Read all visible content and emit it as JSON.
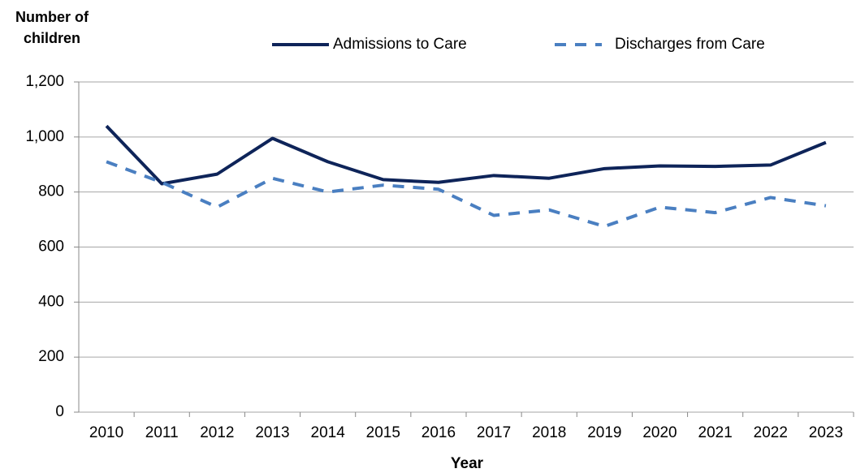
{
  "chart_data": {
    "type": "line",
    "y_label": "Number of children",
    "x_label": "Year",
    "categories": [
      "2010",
      "2011",
      "2012",
      "2013",
      "2014",
      "2015",
      "2016",
      "2017",
      "2018",
      "2019",
      "2020",
      "2021",
      "2022",
      "2023"
    ],
    "series": [
      {
        "name": "Admissions to Care",
        "color": "#0e2459",
        "dash": false,
        "values": [
          1040,
          830,
          865,
          995,
          910,
          845,
          835,
          860,
          850,
          885,
          895,
          893,
          898,
          980
        ]
      },
      {
        "name": "Discharges from Care",
        "color": "#4a7fc1",
        "dash": true,
        "values": [
          910,
          835,
          745,
          850,
          800,
          825,
          810,
          715,
          735,
          675,
          745,
          725,
          780,
          750
        ]
      }
    ],
    "ylim": [
      0,
      1200
    ],
    "yticks": [
      0,
      200,
      400,
      600,
      800,
      {
        "value": 1000,
        "label": "1,000"
      },
      {
        "value": 1200,
        "label": "1,200"
      }
    ],
    "grid": true,
    "legend": "top"
  }
}
